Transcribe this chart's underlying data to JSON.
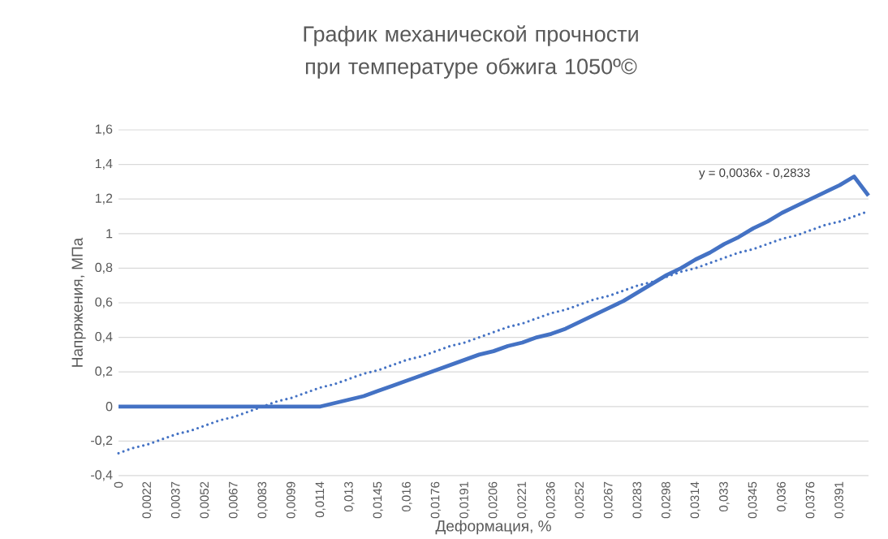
{
  "chart_data": {
    "type": "line",
    "title": "График механической прочности при температуре обжига 1050º©",
    "xlabel": "Деформация, %",
    "ylabel": "Напряжения, МПа",
    "categories": [
      "0",
      null,
      "0,0022",
      null,
      "0,0037",
      null,
      "0,0052",
      null,
      "0,0067",
      null,
      "0,0083",
      null,
      "0,0099",
      null,
      "0,0114",
      null,
      "0,013",
      null,
      "0,0145",
      null,
      "0,016",
      null,
      "0,0176",
      null,
      "0,0191",
      null,
      "0,0206",
      null,
      "0,0221",
      null,
      "0,0236",
      null,
      "0,0252",
      null,
      "0,0267",
      null,
      "0,0283",
      null,
      "0,0298",
      null,
      "0,0314",
      null,
      "0,033",
      null,
      "0,0345",
      null,
      "0,036",
      null,
      "0,0376",
      null,
      "0,0391",
      null,
      null
    ],
    "series": [
      {
        "color": "#4472c4",
        "line_style": "solid",
        "values": [
          0,
          0,
          0,
          0,
          0,
          0,
          0,
          0,
          0,
          0,
          0,
          0,
          0,
          0,
          0,
          0.02,
          0.04,
          0.06,
          0.09,
          0.12,
          0.15,
          0.18,
          0.21,
          0.24,
          0.27,
          0.3,
          0.32,
          0.35,
          0.37,
          0.4,
          0.42,
          0.45,
          0.49,
          0.53,
          0.57,
          0.61,
          0.66,
          0.71,
          0.76,
          0.8,
          0.85,
          0.89,
          0.94,
          0.98,
          1.03,
          1.07,
          1.12,
          1.16,
          1.2,
          1.24,
          1.28,
          1.33,
          1.22
        ]
      },
      {
        "type": "line",
        "color": "#4472c4",
        "line_style": "dotted",
        "values": [
          -0.27,
          -0.24,
          -0.22,
          -0.19,
          -0.16,
          -0.14,
          -0.11,
          -0.08,
          -0.06,
          -0.03,
          0.0,
          0.03,
          0.05,
          0.08,
          0.11,
          0.13,
          0.16,
          0.19,
          0.21,
          0.24,
          0.27,
          0.29,
          0.32,
          0.35,
          0.37,
          0.4,
          0.43,
          0.46,
          0.48,
          0.51,
          0.54,
          0.56,
          0.59,
          0.62,
          0.64,
          0.67,
          0.7,
          0.72,
          0.75,
          0.78,
          0.8,
          0.83,
          0.86,
          0.89,
          0.91,
          0.94,
          0.97,
          0.99,
          1.02,
          1.05,
          1.07,
          1.1,
          1.13
        ]
      }
    ],
    "ylim": [
      -0.4,
      1.6
    ],
    "yticks": [
      {
        "value": -0.4,
        "label": "-0,4"
      },
      {
        "value": -0.2,
        "label": "-0,2"
      },
      0,
      {
        "value": 0.2,
        "label": "0,2"
      },
      {
        "value": 0.4,
        "label": "0,4"
      },
      {
        "value": 0.6,
        "label": "0,6"
      },
      {
        "value": 0.8,
        "label": "0,8"
      },
      1,
      {
        "value": 1.2,
        "label": "1,2"
      },
      {
        "value": 1.4,
        "label": "1,4"
      },
      {
        "value": 1.6,
        "label": "1,6"
      }
    ],
    "grid": "y",
    "annotations": [
      "y = 0,0036x - 0,2833"
    ]
  }
}
